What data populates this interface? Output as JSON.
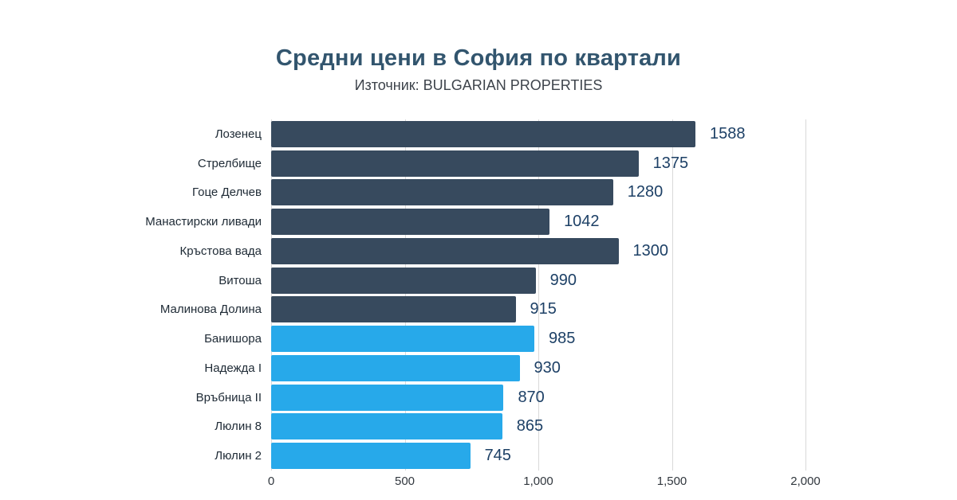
{
  "chart_data": {
    "type": "bar",
    "orientation": "horizontal",
    "title": "Средни цени в София по квартали",
    "subtitle": "Източник: BULGARIAN PROPERTIES",
    "xlim": [
      0,
      2000
    ],
    "x_ticks": [
      0,
      500,
      1000,
      1500,
      2000
    ],
    "x_tick_labels": [
      "0",
      "500",
      "1,000",
      "1,500",
      "2,000"
    ],
    "grid": "vertical",
    "legend": "none",
    "colors": {
      "dark": "#374a5e",
      "blue": "#27a9ea"
    },
    "text_colors": {
      "title": "#32556e",
      "subtitle": "#3d434b",
      "category_label": "#1e2a35",
      "value_label": "#1d4066",
      "tick_label": "#31373e"
    },
    "bars": [
      {
        "label": "Лозенец",
        "value": 1588,
        "color_group": "dark"
      },
      {
        "label": "Стрелбище",
        "value": 1375,
        "color_group": "dark"
      },
      {
        "label": "Гоце Делчев",
        "value": 1280,
        "color_group": "dark"
      },
      {
        "label": "Манастирски ливади",
        "value": 1042,
        "color_group": "dark"
      },
      {
        "label": "Кръстова вада",
        "value": 1300,
        "color_group": "dark"
      },
      {
        "label": "Витоша",
        "value": 990,
        "color_group": "dark"
      },
      {
        "label": "Малинова Долина",
        "value": 915,
        "color_group": "dark"
      },
      {
        "label": "Банишора",
        "value": 985,
        "color_group": "blue"
      },
      {
        "label": "Надежда I",
        "value": 930,
        "color_group": "blue"
      },
      {
        "label": "Връбница II",
        "value": 870,
        "color_group": "blue"
      },
      {
        "label": "Люлин 8",
        "value": 865,
        "color_group": "blue"
      },
      {
        "label": "Люлин 2",
        "value": 745,
        "color_group": "blue"
      }
    ]
  }
}
